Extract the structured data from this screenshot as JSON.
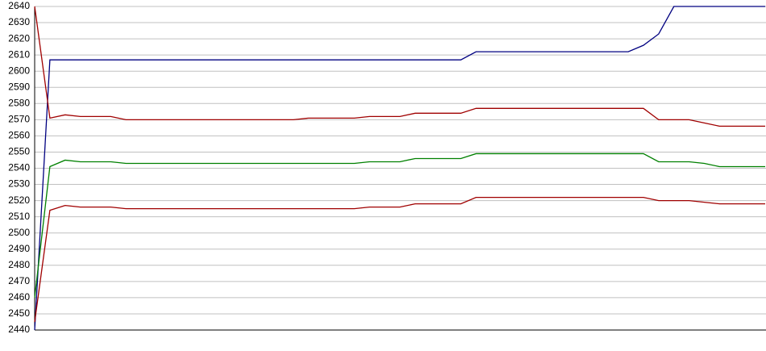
{
  "chart_data": {
    "type": "line",
    "categories": [
      null,
      null,
      null,
      null,
      null,
      null,
      null,
      null,
      null,
      null,
      null,
      null,
      null,
      null,
      null,
      null,
      null,
      null,
      null,
      null,
      null,
      null,
      null,
      null,
      null,
      null,
      null,
      null,
      null,
      null,
      null,
      null,
      null,
      null,
      null,
      null,
      null,
      null,
      null,
      null,
      null,
      null,
      null,
      null,
      null,
      null,
      null,
      null,
      null
    ],
    "series": [
      {
        "color": "#000080",
        "values": [
          2440,
          2607,
          2607,
          2607,
          2607,
          2607,
          2607,
          2607,
          2607,
          2607,
          2607,
          2607,
          2607,
          2607,
          2607,
          2607,
          2607,
          2607,
          2607,
          2607,
          2607,
          2607,
          2607,
          2607,
          2607,
          2607,
          2607,
          2607,
          2607,
          2612,
          2612,
          2612,
          2612,
          2612,
          2612,
          2612,
          2612,
          2612,
          2612,
          2612,
          2616,
          2623,
          2640,
          2640,
          2640,
          2640,
          2640,
          2640,
          2640
        ]
      },
      {
        "color": "#a00000",
        "values": [
          2640,
          2571,
          2573,
          2572,
          2572,
          2572,
          2570,
          2570,
          2570,
          2570,
          2570,
          2570,
          2570,
          2570,
          2570,
          2570,
          2570,
          2570,
          2571,
          2571,
          2571,
          2571,
          2572,
          2572,
          2572,
          2574,
          2574,
          2574,
          2574,
          2577,
          2577,
          2577,
          2577,
          2577,
          2577,
          2577,
          2577,
          2577,
          2577,
          2577,
          2577,
          2570,
          2570,
          2570,
          2568,
          2566,
          2566,
          2566,
          2566
        ]
      },
      {
        "color": "#008000",
        "values": [
          2460,
          2541,
          2545,
          2544,
          2544,
          2544,
          2543,
          2543,
          2543,
          2543,
          2543,
          2543,
          2543,
          2543,
          2543,
          2543,
          2543,
          2543,
          2543,
          2543,
          2543,
          2543,
          2544,
          2544,
          2544,
          2546,
          2546,
          2546,
          2546,
          2549,
          2549,
          2549,
          2549,
          2549,
          2549,
          2549,
          2549,
          2549,
          2549,
          2549,
          2549,
          2544,
          2544,
          2544,
          2543,
          2541,
          2541,
          2541,
          2541
        ]
      },
      {
        "color": "#a00000",
        "values": [
          2445,
          2514,
          2517,
          2516,
          2516,
          2516,
          2515,
          2515,
          2515,
          2515,
          2515,
          2515,
          2515,
          2515,
          2515,
          2515,
          2515,
          2515,
          2515,
          2515,
          2515,
          2515,
          2516,
          2516,
          2516,
          2518,
          2518,
          2518,
          2518,
          2522,
          2522,
          2522,
          2522,
          2522,
          2522,
          2522,
          2522,
          2522,
          2522,
          2522,
          2522,
          2520,
          2520,
          2520,
          2519,
          2518,
          2518,
          2518,
          2518
        ]
      }
    ],
    "ylim": [
      2440,
      2640
    ],
    "yticks": [
      2440,
      2450,
      2460,
      2470,
      2480,
      2490,
      2500,
      2510,
      2520,
      2530,
      2540,
      2550,
      2560,
      2570,
      2580,
      2590,
      2600,
      2610,
      2620,
      2630,
      2640
    ],
    "grid": true
  }
}
